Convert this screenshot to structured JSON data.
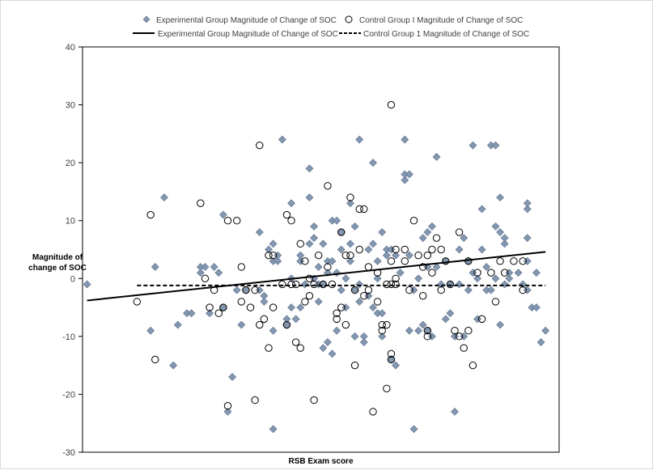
{
  "chart_data": {
    "type": "scatter",
    "title": "",
    "xlabel": "RSB Exam score",
    "ylabel_lines": [
      "Magnitude of",
      "change of SOC"
    ],
    "ylim": [
      -30,
      40
    ],
    "yticks": [
      -30,
      -20,
      -10,
      0,
      10,
      20,
      30,
      40
    ],
    "xlim": [
      0,
      100
    ],
    "grid": false,
    "legend_position": "top",
    "colors": {
      "experimental_marker": "#8497b0",
      "experimental_marker_stroke": "#5b6f8c",
      "control_marker_stroke": "#000000",
      "experimental_line": "#000000",
      "control_line": "#000000"
    },
    "legend": [
      {
        "label": "Experimental Group Magnitude of Change of SOC",
        "kind": "diamond"
      },
      {
        "label": "Control Group I Magnitude of Change of SOC",
        "kind": "circle"
      },
      {
        "label": "Experimental Group Magnitude of Change of SOC",
        "kind": "solid-line"
      },
      {
        "label": "Control Group 1 Magnitude of Change of SOC",
        "kind": "dashed-line"
      }
    ],
    "series": [
      {
        "kind": "diamond",
        "points": [
          [
            0,
            -1
          ],
          [
            15,
            2
          ],
          [
            17,
            14
          ],
          [
            19,
            -15
          ],
          [
            14,
            -9
          ],
          [
            20,
            -8
          ],
          [
            22,
            -6
          ],
          [
            23,
            -6
          ],
          [
            25,
            2
          ],
          [
            25,
            1
          ],
          [
            26,
            2
          ],
          [
            27,
            -6
          ],
          [
            28,
            2
          ],
          [
            29,
            1
          ],
          [
            30,
            -5
          ],
          [
            30,
            11
          ],
          [
            31,
            -23
          ],
          [
            32,
            -17
          ],
          [
            33,
            -2
          ],
          [
            34,
            -8
          ],
          [
            35,
            -2
          ],
          [
            38,
            -2
          ],
          [
            38,
            8
          ],
          [
            39,
            -3
          ],
          [
            39,
            -4
          ],
          [
            40,
            5
          ],
          [
            41,
            3
          ],
          [
            41,
            6
          ],
          [
            41,
            -9
          ],
          [
            41,
            -26
          ],
          [
            42,
            3
          ],
          [
            42,
            4
          ],
          [
            43,
            24
          ],
          [
            44,
            -8
          ],
          [
            44,
            -7
          ],
          [
            45,
            -5
          ],
          [
            45,
            0
          ],
          [
            45,
            13
          ],
          [
            46,
            -7
          ],
          [
            47,
            3
          ],
          [
            47,
            -5
          ],
          [
            47,
            4
          ],
          [
            48,
            -1
          ],
          [
            49,
            6
          ],
          [
            49,
            14
          ],
          [
            49,
            19
          ],
          [
            50,
            7
          ],
          [
            50,
            9
          ],
          [
            50,
            0
          ],
          [
            51,
            -1
          ],
          [
            51,
            -4
          ],
          [
            51,
            2
          ],
          [
            52,
            6
          ],
          [
            52,
            -1
          ],
          [
            52,
            -12
          ],
          [
            53,
            -11
          ],
          [
            53,
            1
          ],
          [
            53,
            3
          ],
          [
            54,
            3
          ],
          [
            54,
            10
          ],
          [
            54,
            -13
          ],
          [
            55,
            1
          ],
          [
            55,
            10
          ],
          [
            55,
            -9
          ],
          [
            56,
            -2
          ],
          [
            56,
            5
          ],
          [
            56,
            8
          ],
          [
            57,
            0
          ],
          [
            57,
            -5
          ],
          [
            58,
            3
          ],
          [
            58,
            6
          ],
          [
            58,
            13
          ],
          [
            59,
            -2
          ],
          [
            59,
            9
          ],
          [
            59,
            -10
          ],
          [
            60,
            -1
          ],
          [
            60,
            24
          ],
          [
            60,
            -4
          ],
          [
            61,
            -10
          ],
          [
            61,
            -11
          ],
          [
            62,
            5
          ],
          [
            62,
            -3
          ],
          [
            63,
            20
          ],
          [
            63,
            6
          ],
          [
            63,
            -5
          ],
          [
            64,
            0
          ],
          [
            64,
            -6
          ],
          [
            64,
            3
          ],
          [
            65,
            8
          ],
          [
            65,
            -10
          ],
          [
            65,
            -6
          ],
          [
            66,
            5
          ],
          [
            66,
            4
          ],
          [
            67,
            5
          ],
          [
            67,
            -14
          ],
          [
            68,
            4
          ],
          [
            68,
            -15
          ],
          [
            69,
            1
          ],
          [
            70,
            17
          ],
          [
            70,
            18
          ],
          [
            70,
            24
          ],
          [
            71,
            18
          ],
          [
            71,
            4
          ],
          [
            71,
            -9
          ],
          [
            72,
            -2
          ],
          [
            72,
            -26
          ],
          [
            73,
            0
          ],
          [
            73,
            -9
          ],
          [
            74,
            -8
          ],
          [
            74,
            7
          ],
          [
            75,
            2
          ],
          [
            75,
            8
          ],
          [
            75,
            -9
          ],
          [
            76,
            -10
          ],
          [
            76,
            9
          ],
          [
            77,
            21
          ],
          [
            77,
            2
          ],
          [
            78,
            -1
          ],
          [
            79,
            3
          ],
          [
            79,
            -7
          ],
          [
            80,
            -6
          ],
          [
            80,
            -1
          ],
          [
            81,
            -23
          ],
          [
            81,
            -10
          ],
          [
            82,
            -1
          ],
          [
            82,
            5
          ],
          [
            83,
            -10
          ],
          [
            83,
            7
          ],
          [
            84,
            3
          ],
          [
            84,
            -2
          ],
          [
            85,
            1
          ],
          [
            85,
            23
          ],
          [
            86,
            -7
          ],
          [
            86,
            0
          ],
          [
            87,
            12
          ],
          [
            87,
            5
          ],
          [
            88,
            2
          ],
          [
            88,
            -2
          ],
          [
            89,
            23
          ],
          [
            89,
            -2
          ],
          [
            90,
            0
          ],
          [
            90,
            23
          ],
          [
            90,
            9
          ],
          [
            91,
            8
          ],
          [
            91,
            14
          ],
          [
            91,
            -8
          ],
          [
            92,
            -1
          ],
          [
            92,
            6
          ],
          [
            92,
            7
          ],
          [
            93,
            0
          ],
          [
            93,
            1
          ],
          [
            95,
            1
          ],
          [
            96,
            -1
          ],
          [
            97,
            3
          ],
          [
            97,
            12
          ],
          [
            97,
            13
          ],
          [
            97,
            7
          ],
          [
            97,
            -2
          ],
          [
            98,
            -5
          ],
          [
            99,
            -5
          ],
          [
            99,
            1
          ],
          [
            100,
            -11
          ],
          [
            101,
            -9
          ]
        ]
      },
      {
        "kind": "circle",
        "points": [
          [
            11,
            -4
          ],
          [
            14,
            11
          ],
          [
            15,
            -14
          ],
          [
            25,
            13
          ],
          [
            26,
            0
          ],
          [
            27,
            -5
          ],
          [
            28,
            -2
          ],
          [
            29,
            -6
          ],
          [
            30,
            -5
          ],
          [
            31,
            10
          ],
          [
            31,
            -22
          ],
          [
            33,
            10
          ],
          [
            34,
            2
          ],
          [
            34,
            -4
          ],
          [
            35,
            -2
          ],
          [
            36,
            -5
          ],
          [
            37,
            -2
          ],
          [
            37,
            -21
          ],
          [
            38,
            -8
          ],
          [
            38,
            23
          ],
          [
            39,
            -7
          ],
          [
            40,
            -12
          ],
          [
            40,
            4
          ],
          [
            41,
            4
          ],
          [
            41,
            -5
          ],
          [
            43,
            -1
          ],
          [
            44,
            11
          ],
          [
            44,
            -8
          ],
          [
            45,
            10
          ],
          [
            45,
            -1
          ],
          [
            46,
            -11
          ],
          [
            46,
            -1
          ],
          [
            47,
            6
          ],
          [
            47,
            -12
          ],
          [
            48,
            -4
          ],
          [
            48,
            3
          ],
          [
            49,
            0
          ],
          [
            49,
            -3
          ],
          [
            50,
            -1
          ],
          [
            50,
            -21
          ],
          [
            51,
            4
          ],
          [
            52,
            -1
          ],
          [
            53,
            2
          ],
          [
            53,
            16
          ],
          [
            54,
            -1
          ],
          [
            55,
            -7
          ],
          [
            55,
            -6
          ],
          [
            56,
            -5
          ],
          [
            56,
            8
          ],
          [
            57,
            4
          ],
          [
            57,
            -8
          ],
          [
            58,
            14
          ],
          [
            58,
            4
          ],
          [
            59,
            -2
          ],
          [
            59,
            -15
          ],
          [
            60,
            12
          ],
          [
            60,
            5
          ],
          [
            61,
            12
          ],
          [
            61,
            -3
          ],
          [
            62,
            2
          ],
          [
            62,
            -2
          ],
          [
            63,
            -23
          ],
          [
            64,
            -4
          ],
          [
            64,
            1
          ],
          [
            65,
            -9
          ],
          [
            65,
            -8
          ],
          [
            66,
            -19
          ],
          [
            66,
            -1
          ],
          [
            66,
            -8
          ],
          [
            67,
            3
          ],
          [
            67,
            -13
          ],
          [
            67,
            -14
          ],
          [
            67,
            -1
          ],
          [
            67,
            30
          ],
          [
            68,
            -1
          ],
          [
            68,
            0
          ],
          [
            68,
            5
          ],
          [
            70,
            3
          ],
          [
            70,
            5
          ],
          [
            71,
            -2
          ],
          [
            72,
            10
          ],
          [
            73,
            4
          ],
          [
            74,
            2
          ],
          [
            74,
            -3
          ],
          [
            75,
            -9
          ],
          [
            75,
            -10
          ],
          [
            75,
            4
          ],
          [
            76,
            5
          ],
          [
            76,
            1
          ],
          [
            77,
            7
          ],
          [
            78,
            -2
          ],
          [
            78,
            5
          ],
          [
            79,
            3
          ],
          [
            80,
            -1
          ],
          [
            81,
            -9
          ],
          [
            82,
            -10
          ],
          [
            82,
            8
          ],
          [
            83,
            -12
          ],
          [
            84,
            3
          ],
          [
            84,
            -9
          ],
          [
            85,
            -15
          ],
          [
            86,
            1
          ],
          [
            87,
            -7
          ],
          [
            89,
            1
          ],
          [
            90,
            -4
          ],
          [
            91,
            3
          ],
          [
            92,
            1
          ],
          [
            94,
            3
          ],
          [
            96,
            -2
          ],
          [
            96,
            3
          ]
        ]
      }
    ],
    "trendlines": [
      {
        "kind": "solid",
        "x": [
          0,
          101
        ],
        "y": [
          -3.8,
          4.6
        ]
      },
      {
        "kind": "dashed",
        "x": [
          11,
          101
        ],
        "y": [
          -1.2,
          -1.2
        ]
      }
    ]
  }
}
